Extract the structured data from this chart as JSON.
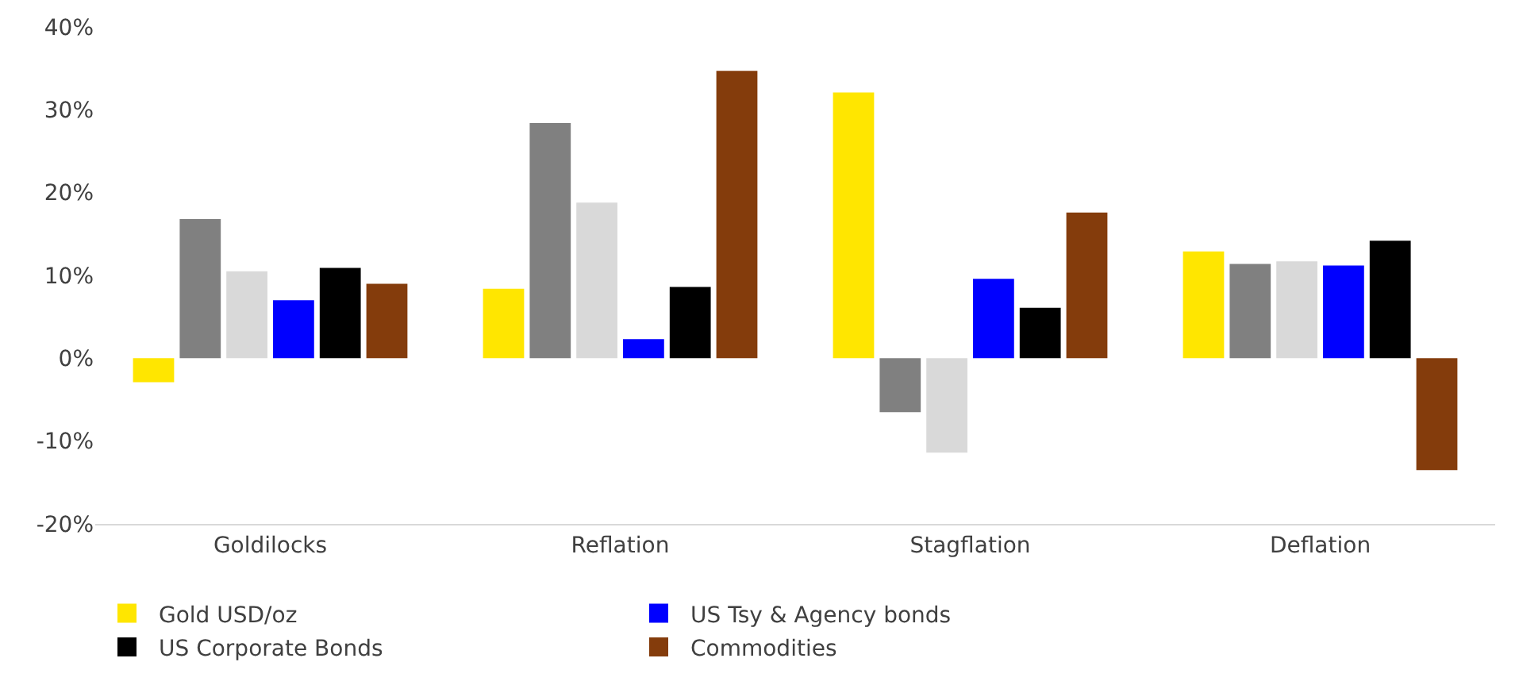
{
  "chart_data": {
    "type": "bar",
    "categories": [
      "Goldilocks",
      "Reflation",
      "Stagflation",
      "Deflation"
    ],
    "series": [
      {
        "name": "Gold USD/oz",
        "color": "#ffe600",
        "values": [
          -2.9,
          8.4,
          32.1,
          12.9
        ]
      },
      {
        "color": "#808080",
        "values": [
          16.8,
          28.4,
          -6.5,
          11.4
        ]
      },
      {
        "color": "#d9d9d9",
        "values": [
          10.5,
          18.8,
          -11.4,
          11.7
        ]
      },
      {
        "name": "US Tsy & Agency bonds",
        "color": "#0000ff",
        "values": [
          7.0,
          2.3,
          9.6,
          11.2
        ]
      },
      {
        "name": "US Corporate Bonds",
        "color": "#000000",
        "values": [
          10.9,
          8.6,
          6.1,
          14.2
        ]
      },
      {
        "name": "Commodities",
        "color": "#843c0c",
        "values": [
          9.0,
          34.7,
          17.6,
          -13.5
        ]
      }
    ],
    "ylim": [
      -20,
      40
    ],
    "yticks": [
      {
        "value": -20,
        "label": "-20%"
      },
      {
        "value": -10,
        "label": "-10%"
      },
      {
        "value": 0,
        "label": "0%"
      },
      {
        "value": 10,
        "label": "10%"
      },
      {
        "value": 20,
        "label": "20%"
      },
      {
        "value": 30,
        "label": "30%"
      },
      {
        "value": 40,
        "label": "40%"
      }
    ],
    "grid": false,
    "legend": "bottom"
  }
}
